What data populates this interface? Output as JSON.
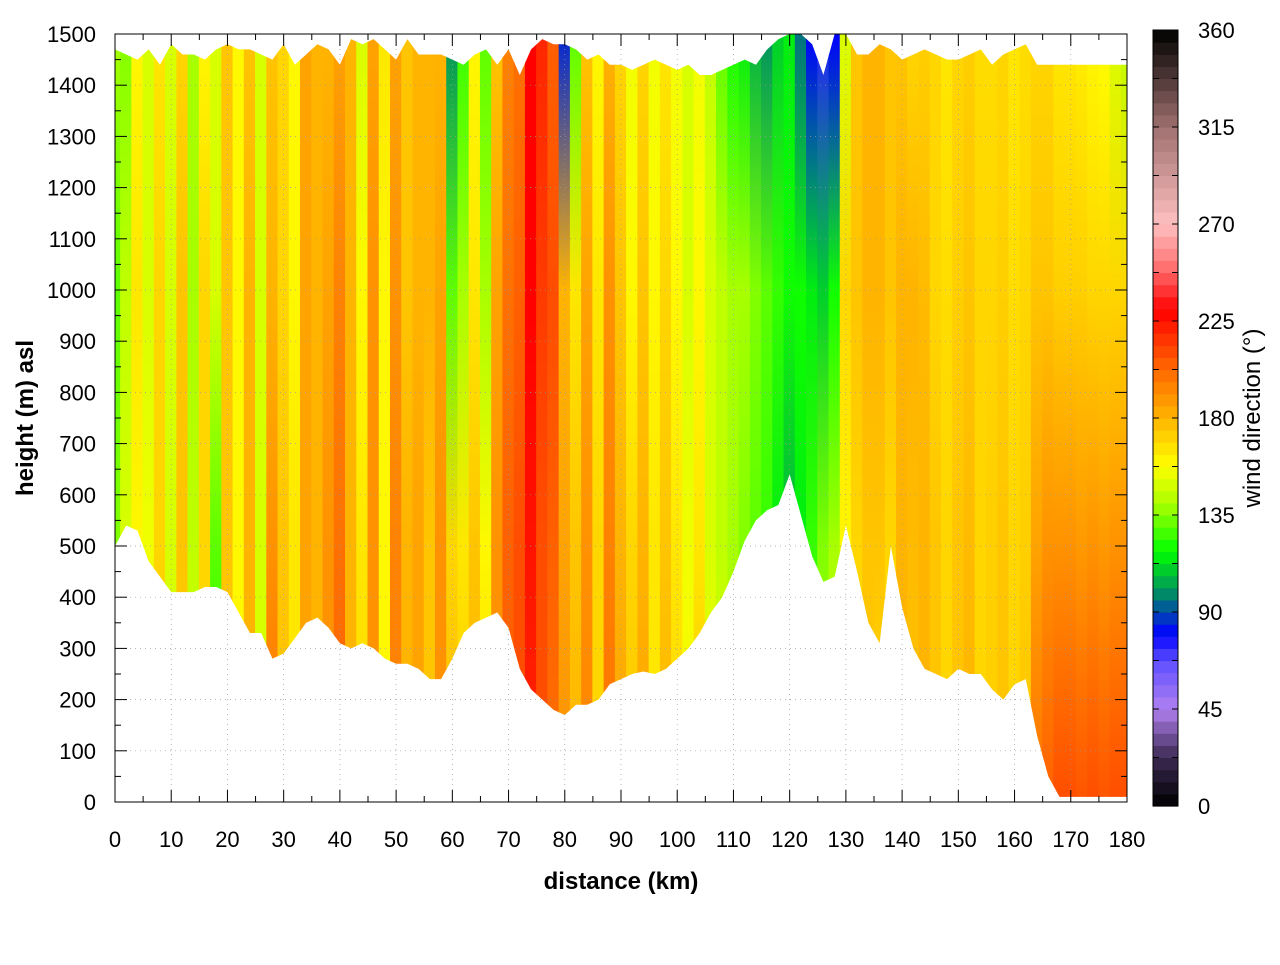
{
  "chart_data": {
    "type": "heatmap",
    "title": "",
    "xlabel": "distance (km)",
    "ylabel": "height (m) asl",
    "colorbar_label": "wind direction (°)",
    "xlim": [
      0,
      180
    ],
    "ylim": [
      0,
      1500
    ],
    "clim": [
      0,
      360
    ],
    "grid": true,
    "x_ticks": [
      "0",
      "10",
      "20",
      "30",
      "40",
      "50",
      "60",
      "70",
      "80",
      "90",
      "100",
      "110",
      "120",
      "130",
      "140",
      "150",
      "160",
      "170",
      "180"
    ],
    "y_ticks": [
      "0",
      "100",
      "200",
      "300",
      "400",
      "500",
      "600",
      "700",
      "800",
      "900",
      "1000",
      "1100",
      "1200",
      "1300",
      "1400",
      "1500"
    ],
    "colorbar_ticks": [
      "0",
      "45",
      "90",
      "135",
      "180",
      "225",
      "270",
      "315",
      "360"
    ],
    "colormap": [
      [
        0,
        "#000000"
      ],
      [
        22,
        "#3a2850"
      ],
      [
        45,
        "#b080f0"
      ],
      [
        67,
        "#6050ff"
      ],
      [
        80,
        "#0000ff"
      ],
      [
        97,
        "#008070"
      ],
      [
        118,
        "#00ff00"
      ],
      [
        140,
        "#a8ff00"
      ],
      [
        158,
        "#ffff00"
      ],
      [
        180,
        "#ffb400"
      ],
      [
        205,
        "#ff6000"
      ],
      [
        230,
        "#ff0000"
      ],
      [
        250,
        "#ff7070"
      ],
      [
        270,
        "#ffc0c0"
      ],
      [
        315,
        "#a07070"
      ],
      [
        360,
        "#000000"
      ]
    ],
    "profile_heights_m": [
      0,
      500,
      1000,
      1500
    ],
    "distance_km": [
      0,
      2,
      4,
      6,
      8,
      10,
      12,
      14,
      16,
      18,
      20,
      22,
      24,
      26,
      28,
      30,
      32,
      34,
      36,
      38,
      40,
      42,
      44,
      46,
      48,
      50,
      52,
      54,
      56,
      58,
      60,
      62,
      64,
      66,
      68,
      70,
      72,
      74,
      76,
      78,
      80,
      82,
      84,
      86,
      88,
      90,
      92,
      94,
      96,
      98,
      100,
      102,
      104,
      106,
      108,
      110,
      112,
      114,
      116,
      118,
      120,
      122,
      124,
      126,
      128,
      130,
      132,
      134,
      136,
      138,
      140,
      142,
      144,
      146,
      148,
      150,
      152,
      154,
      156,
      158,
      160,
      162,
      164,
      166,
      168,
      170,
      172,
      174,
      176,
      178,
      180
    ],
    "terrain_m": [
      500,
      540,
      530,
      470,
      440,
      410,
      410,
      410,
      420,
      420,
      410,
      370,
      330,
      330,
      280,
      290,
      320,
      350,
      360,
      340,
      310,
      300,
      310,
      300,
      280,
      270,
      270,
      260,
      240,
      240,
      280,
      330,
      350,
      360,
      370,
      340,
      260,
      220,
      200,
      180,
      170,
      190,
      190,
      200,
      230,
      240,
      250,
      255,
      250,
      260,
      280,
      300,
      330,
      370,
      400,
      450,
      510,
      550,
      570,
      580,
      640,
      560,
      480,
      430,
      440,
      540,
      450,
      350,
      310,
      500,
      380,
      300,
      260,
      250,
      240,
      260,
      250,
      250,
      220,
      200,
      230,
      240,
      130,
      50,
      10,
      10,
      10,
      10,
      10,
      10,
      10
    ],
    "top_m": [
      1470,
      1460,
      1450,
      1470,
      1440,
      1480,
      1460,
      1460,
      1450,
      1470,
      1480,
      1470,
      1470,
      1460,
      1450,
      1480,
      1440,
      1460,
      1480,
      1470,
      1440,
      1490,
      1480,
      1490,
      1470,
      1450,
      1490,
      1460,
      1460,
      1460,
      1450,
      1440,
      1460,
      1470,
      1440,
      1470,
      1420,
      1470,
      1490,
      1480,
      1480,
      1470,
      1450,
      1460,
      1440,
      1440,
      1430,
      1440,
      1450,
      1440,
      1430,
      1440,
      1420,
      1420,
      1430,
      1440,
      1450,
      1440,
      1470,
      1490,
      1500,
      1500,
      1480,
      1420,
      1500,
      1500,
      1460,
      1460,
      1480,
      1470,
      1450,
      1460,
      1470,
      1460,
      1450,
      1450,
      1460,
      1470,
      1440,
      1460,
      1470,
      1480,
      1440,
      1440,
      1440,
      1440,
      1440,
      1440,
      1440,
      1440,
      1440
    ],
    "wind_direction_deg": [
      [
        140,
        135,
        130,
        140
      ],
      [
        165,
        150,
        145,
        135
      ],
      [
        170,
        160,
        165,
        160
      ],
      [
        160,
        155,
        150,
        150
      ],
      [
        175,
        170,
        170,
        165
      ],
      [
        150,
        150,
        150,
        150
      ],
      [
        170,
        175,
        175,
        170
      ],
      [
        150,
        145,
        140,
        140
      ],
      [
        170,
        170,
        170,
        160
      ],
      [
        120,
        130,
        150,
        150
      ],
      [
        175,
        175,
        175,
        175
      ],
      [
        160,
        160,
        160,
        160
      ],
      [
        180,
        180,
        180,
        175
      ],
      [
        150,
        150,
        150,
        150
      ],
      [
        200,
        190,
        180,
        175
      ],
      [
        175,
        175,
        170,
        170
      ],
      [
        165,
        165,
        160,
        160
      ],
      [
        185,
        185,
        185,
        185
      ],
      [
        180,
        180,
        180,
        180
      ],
      [
        190,
        190,
        185,
        180
      ],
      [
        205,
        200,
        195,
        185
      ],
      [
        180,
        180,
        180,
        180
      ],
      [
        170,
        165,
        160,
        150
      ],
      [
        190,
        190,
        190,
        185
      ],
      [
        160,
        160,
        160,
        165
      ],
      [
        195,
        195,
        190,
        185
      ],
      [
        180,
        180,
        175,
        175
      ],
      [
        185,
        185,
        180,
        180
      ],
      [
        175,
        175,
        180,
        180
      ],
      [
        190,
        190,
        185,
        180
      ],
      [
        180,
        170,
        130,
        100
      ],
      [
        175,
        165,
        140,
        125
      ],
      [
        180,
        175,
        165,
        160
      ],
      [
        170,
        160,
        140,
        130
      ],
      [
        190,
        190,
        185,
        175
      ],
      [
        205,
        205,
        200,
        195
      ],
      [
        210,
        210,
        205,
        200
      ],
      [
        220,
        225,
        230,
        230
      ],
      [
        210,
        210,
        215,
        220
      ],
      [
        200,
        205,
        210,
        205
      ],
      [
        190,
        185,
        180,
        85
      ],
      [
        180,
        175,
        165,
        130
      ],
      [
        195,
        190,
        185,
        175
      ],
      [
        170,
        170,
        165,
        160
      ],
      [
        200,
        195,
        190,
        180
      ],
      [
        185,
        180,
        175,
        170
      ],
      [
        175,
        170,
        160,
        155
      ],
      [
        185,
        180,
        175,
        170
      ],
      [
        165,
        165,
        160,
        155
      ],
      [
        180,
        175,
        170,
        165
      ],
      [
        170,
        165,
        160,
        155
      ],
      [
        160,
        155,
        150,
        150
      ],
      [
        175,
        165,
        160,
        155
      ],
      [
        155,
        150,
        150,
        145
      ],
      [
        150,
        145,
        145,
        130
      ],
      [
        145,
        140,
        140,
        120
      ],
      [
        140,
        135,
        140,
        115
      ],
      [
        130,
        130,
        135,
        105
      ],
      [
        125,
        125,
        130,
        100
      ],
      [
        110,
        115,
        125,
        110
      ],
      [
        100,
        105,
        120,
        115
      ],
      [
        115,
        115,
        120,
        95
      ],
      [
        130,
        125,
        115,
        80
      ],
      [
        140,
        135,
        110,
        75
      ],
      [
        150,
        140,
        120,
        80
      ],
      [
        165,
        160,
        170,
        150
      ],
      [
        170,
        170,
        175,
        175
      ],
      [
        175,
        175,
        180,
        180
      ],
      [
        170,
        175,
        180,
        180
      ],
      [
        165,
        170,
        175,
        175
      ],
      [
        180,
        180,
        180,
        175
      ],
      [
        175,
        178,
        180,
        170
      ],
      [
        180,
        180,
        178,
        172
      ],
      [
        175,
        175,
        170,
        170
      ],
      [
        170,
        170,
        168,
        165
      ],
      [
        175,
        175,
        172,
        170
      ],
      [
        180,
        178,
        175,
        172
      ],
      [
        170,
        170,
        170,
        168
      ],
      [
        172,
        172,
        170,
        168
      ],
      [
        175,
        175,
        172,
        170
      ],
      [
        170,
        170,
        168,
        165
      ],
      [
        175,
        172,
        170,
        168
      ],
      [
        200,
        185,
        175,
        170
      ],
      [
        205,
        190,
        175,
        170
      ],
      [
        210,
        190,
        172,
        165
      ],
      [
        210,
        190,
        172,
        165
      ],
      [
        208,
        188,
        172,
        163
      ],
      [
        210,
        190,
        170,
        160
      ],
      [
        208,
        188,
        170,
        158
      ],
      [
        210,
        190,
        170,
        150
      ],
      [
        210,
        190,
        170,
        145
      ]
    ]
  }
}
